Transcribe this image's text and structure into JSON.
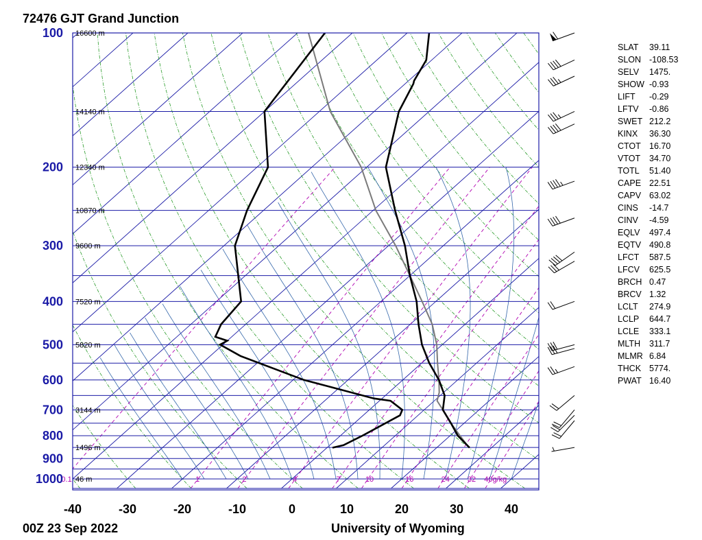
{
  "header": {
    "title": "72476 GJT Grand Junction"
  },
  "footer": {
    "time": "00Z 23 Sep 2022",
    "source": "University of Wyoming"
  },
  "colors": {
    "isobar": "#1a1aa6",
    "isotherm": "#1a1aa6",
    "dry_adiabat": "#2a9c2a",
    "moist_adiabat": "#3366aa",
    "mixing_ratio": "#b000b0",
    "temperature": "#000000",
    "dewpoint": "#000000",
    "parcel": "#7a7a7a",
    "border": "#1a1aa6"
  },
  "chart_data": {
    "type": "skew-t",
    "pressure_levels": [
      100,
      200,
      300,
      400,
      500,
      600,
      700,
      800,
      900,
      1000
    ],
    "pressure_labels": [
      "100",
      "200",
      "300",
      "400",
      "500",
      "600",
      "700",
      "800",
      "900",
      "1000"
    ],
    "temperature_ticks": [
      -40,
      -30,
      -20,
      -10,
      0,
      10,
      20,
      30,
      40
    ],
    "temperature_labels": [
      "-40",
      "-30",
      "-20",
      "-10",
      "0",
      "10",
      "20",
      "30",
      "40"
    ],
    "plim": [
      1050,
      100
    ],
    "xlim_at_1000": [
      -40,
      45
    ],
    "heights": [
      {
        "p": 100,
        "label": "16600 m"
      },
      {
        "p": 150,
        "label": "14140 m"
      },
      {
        "p": 200,
        "label": "12340 m"
      },
      {
        "p": 250,
        "label": "10870 m"
      },
      {
        "p": 300,
        "label": "9600 m"
      },
      {
        "p": 400,
        "label": "7520 m"
      },
      {
        "p": 500,
        "label": "5820 m"
      },
      {
        "p": 700,
        "label": "3144 m"
      },
      {
        "p": 850,
        "label": "1496 m"
      },
      {
        "p": 1000,
        "label": "46 m"
      }
    ],
    "mixing_ratio_labels": [
      "0.1",
      "1",
      "2",
      "4",
      "7",
      "10",
      "16",
      "24",
      "32",
      "40g/kg"
    ],
    "mixing_ratio_values": [
      0.1,
      1,
      2,
      4,
      7,
      10,
      16,
      24,
      32,
      40
    ],
    "temperature_profile": [
      {
        "p": 851,
        "t": 26.0
      },
      {
        "p": 800,
        "t": 21.4
      },
      {
        "p": 750,
        "t": 17.6
      },
      {
        "p": 700,
        "t": 13.4
      },
      {
        "p": 650,
        "t": 10.8
      },
      {
        "p": 600,
        "t": 6.6
      },
      {
        "p": 550,
        "t": 1.4
      },
      {
        "p": 500,
        "t": -3.7
      },
      {
        "p": 450,
        "t": -8.5
      },
      {
        "p": 400,
        "t": -13.5
      },
      {
        "p": 350,
        "t": -20.0
      },
      {
        "p": 300,
        "t": -27.0
      },
      {
        "p": 250,
        "t": -36.0
      },
      {
        "p": 200,
        "t": -46.5
      },
      {
        "p": 150,
        "t": -55.5
      },
      {
        "p": 130,
        "t": -58.5
      },
      {
        "p": 128,
        "t": -59.0
      },
      {
        "p": 115,
        "t": -61.0
      },
      {
        "p": 100,
        "t": -66.0
      }
    ],
    "dewpoint_profile": [
      {
        "p": 851,
        "t": 1.0
      },
      {
        "p": 840,
        "t": 2.5
      },
      {
        "p": 800,
        "t": 4.0
      },
      {
        "p": 720,
        "t": 6.7
      },
      {
        "p": 700,
        "t": 6.0
      },
      {
        "p": 668,
        "t": 2.0
      },
      {
        "p": 660,
        "t": -1.5
      },
      {
        "p": 600,
        "t": -18.0
      },
      {
        "p": 530,
        "t": -34.5
      },
      {
        "p": 500,
        "t": -40.5
      },
      {
        "p": 490,
        "t": -40.0
      },
      {
        "p": 480,
        "t": -43.0
      },
      {
        "p": 450,
        "t": -44.5
      },
      {
        "p": 400,
        "t": -45.5
      },
      {
        "p": 300,
        "t": -58.0
      },
      {
        "p": 250,
        "t": -63.0
      },
      {
        "p": 200,
        "t": -68.0
      },
      {
        "p": 150,
        "t": -80.0
      },
      {
        "p": 100,
        "t": -85.0
      }
    ],
    "parcel_profile": [
      {
        "p": 852,
        "t": 26.0
      },
      {
        "p": 800,
        "t": 21.8
      },
      {
        "p": 750,
        "t": 17.6
      },
      {
        "p": 700,
        "t": 13.4
      },
      {
        "p": 668,
        "t": 10.5
      },
      {
        "p": 640,
        "t": 9.2
      },
      {
        "p": 600,
        "t": 6.6
      },
      {
        "p": 550,
        "t": 2.9
      },
      {
        "p": 500,
        "t": -1.0
      },
      {
        "p": 450,
        "t": -6.0
      },
      {
        "p": 400,
        "t": -12.5
      },
      {
        "p": 350,
        "t": -20.0
      },
      {
        "p": 300,
        "t": -28.7
      },
      {
        "p": 250,
        "t": -39.5
      },
      {
        "p": 200,
        "t": -51.0
      },
      {
        "p": 150,
        "t": -68.0
      },
      {
        "p": 100,
        "t": -88.0
      }
    ],
    "wind_barbs": [
      {
        "p": 100,
        "dir": 250,
        "kt": 60
      },
      {
        "p": 115,
        "dir": 245,
        "kt": 40
      },
      {
        "p": 125,
        "dir": 245,
        "kt": 35
      },
      {
        "p": 150,
        "dir": 245,
        "kt": 35
      },
      {
        "p": 160,
        "dir": 245,
        "kt": 40
      },
      {
        "p": 215,
        "dir": 250,
        "kt": 45
      },
      {
        "p": 260,
        "dir": 250,
        "kt": 40
      },
      {
        "p": 310,
        "dir": 235,
        "kt": 40
      },
      {
        "p": 325,
        "dir": 240,
        "kt": 30
      },
      {
        "p": 400,
        "dir": 250,
        "kt": 20
      },
      {
        "p": 500,
        "dir": 255,
        "kt": 30
      },
      {
        "p": 510,
        "dir": 255,
        "kt": 30
      },
      {
        "p": 560,
        "dir": 250,
        "kt": 25
      },
      {
        "p": 650,
        "dir": 230,
        "kt": 20
      },
      {
        "p": 700,
        "dir": 220,
        "kt": 20
      },
      {
        "p": 720,
        "dir": 225,
        "kt": 20
      },
      {
        "p": 740,
        "dir": 220,
        "kt": 20
      },
      {
        "p": 850,
        "dir": 260,
        "kt": 5
      }
    ]
  },
  "indices": [
    {
      "key": "SLAT",
      "value": "39.11"
    },
    {
      "key": "SLON",
      "value": "-108.53"
    },
    {
      "key": "SELV",
      "value": "1475."
    },
    {
      "key": "SHOW",
      "value": "-0.93"
    },
    {
      "key": "LIFT",
      "value": "-0.29"
    },
    {
      "key": "LFTV",
      "value": "-0.86"
    },
    {
      "key": "SWET",
      "value": "212.2"
    },
    {
      "key": "KINX",
      "value": "36.30"
    },
    {
      "key": "CTOT",
      "value": "16.70"
    },
    {
      "key": "VTOT",
      "value": "34.70"
    },
    {
      "key": "TOTL",
      "value": "51.40"
    },
    {
      "key": "CAPE",
      "value": "22.51"
    },
    {
      "key": "CAPV",
      "value": "63.02"
    },
    {
      "key": "CINS",
      "value": "-14.7"
    },
    {
      "key": "CINV",
      "value": "-4.59"
    },
    {
      "key": "EQLV",
      "value": "497.4"
    },
    {
      "key": "EQTV",
      "value": "490.8"
    },
    {
      "key": "LFCT",
      "value": "587.5"
    },
    {
      "key": "LFCV",
      "value": "625.5"
    },
    {
      "key": "BRCH",
      "value": "0.47"
    },
    {
      "key": "BRCV",
      "value": "1.32"
    },
    {
      "key": "LCLT",
      "value": "274.9"
    },
    {
      "key": "LCLP",
      "value": "644.7"
    },
    {
      "key": "LCLE",
      "value": "333.1"
    },
    {
      "key": "MLTH",
      "value": "311.7"
    },
    {
      "key": "MLMR",
      "value": "6.84"
    },
    {
      "key": "THCK",
      "value": "5774."
    },
    {
      "key": "PWAT",
      "value": "16.40"
    }
  ]
}
